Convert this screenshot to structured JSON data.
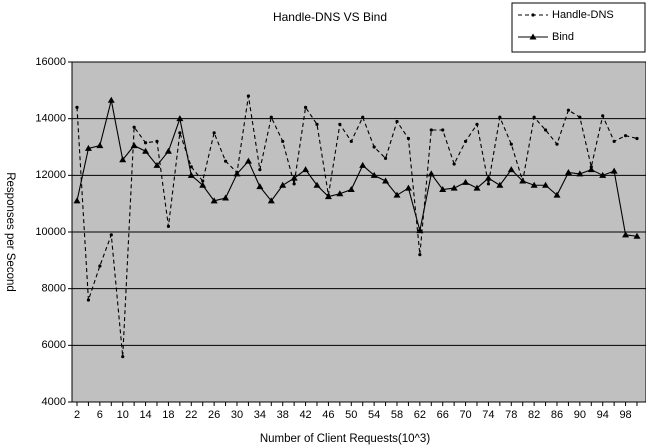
{
  "chart_data": {
    "type": "line",
    "title": "Handle-DNS VS Bind",
    "x_label": "Number of Client Requests(10^3)",
    "y_label": "Responses per Second",
    "categories": [
      2,
      null,
      6,
      null,
      10,
      null,
      14,
      null,
      18,
      null,
      22,
      null,
      26,
      null,
      30,
      null,
      34,
      null,
      38,
      null,
      42,
      null,
      46,
      null,
      50,
      null,
      54,
      null,
      58,
      null,
      62,
      null,
      66,
      null,
      70,
      null,
      74,
      null,
      78,
      null,
      82,
      null,
      86,
      null,
      90,
      null,
      94,
      null,
      98,
      null
    ],
    "ylim": [
      4000,
      16000
    ],
    "yticks": [
      4000,
      6000,
      8000,
      10000,
      12000,
      14000,
      16000
    ],
    "grid": true,
    "plot_background": "#c0c0c0",
    "legend": "top-right",
    "series": [
      {
        "name": "Handle-DNS",
        "color": "#000000",
        "line_style": "dashed",
        "marker": "dot",
        "values": [
          14400,
          7600,
          8800,
          9900,
          5600,
          13700,
          13150,
          13200,
          10200,
          13500,
          12300,
          11800,
          13500,
          12500,
          12100,
          14800,
          12200,
          14050,
          13200,
          11700,
          14400,
          13800,
          11300,
          13800,
          13200,
          14050,
          13000,
          12600,
          13900,
          13300,
          9200,
          13600,
          13600,
          12400,
          13200,
          13800,
          11700,
          14050,
          13100,
          11800,
          14050,
          13600,
          13100,
          14300,
          14050,
          12300,
          14100,
          13200,
          13400,
          13300
        ]
      },
      {
        "name": "Bind",
        "color": "#000000",
        "line_style": "solid",
        "marker": "triangle",
        "values": [
          11100,
          12950,
          13050,
          14650,
          12550,
          13050,
          12850,
          12350,
          12850,
          14000,
          12000,
          11650,
          11100,
          11200,
          12050,
          12500,
          11600,
          11100,
          11650,
          11900,
          12200,
          11650,
          11250,
          11350,
          11500,
          12350,
          12000,
          11800,
          11300,
          11550,
          10050,
          12050,
          11500,
          11550,
          11750,
          11550,
          11900,
          11650,
          12200,
          11800,
          11650,
          11650,
          11300,
          12100,
          12050,
          12200,
          12000,
          12150,
          9900,
          9850
        ]
      }
    ]
  }
}
